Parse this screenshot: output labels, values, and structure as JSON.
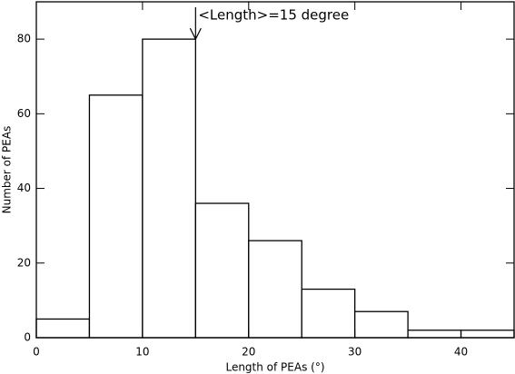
{
  "chart_data": {
    "type": "histogram",
    "x_label": "Length of PEAs (°)",
    "y_label": "Number of PEAs",
    "bins": [
      0,
      5,
      10,
      15,
      20,
      25,
      30,
      35,
      40,
      45
    ],
    "values": [
      5,
      65,
      80,
      36,
      26,
      13,
      7,
      2,
      2
    ],
    "color": "#ffffff",
    "xlim": [
      0,
      45
    ],
    "ylim": [
      0,
      90
    ],
    "xticks": [
      0,
      10,
      20,
      30,
      40
    ],
    "yticks": [
      0,
      20,
      40,
      60,
      80
    ],
    "annotation": {
      "text": "<Length>=15 degree",
      "x": 15,
      "y": 80
    }
  }
}
